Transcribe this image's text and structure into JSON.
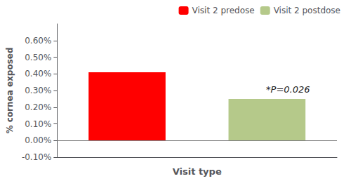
{
  "chart_data": {
    "type": "bar",
    "xlabel": "Visit type",
    "ylabel": "% cornea exposed",
    "categories": [
      "Visit 2 predose",
      "Visit 2 postdose"
    ],
    "values": [
      0.0041,
      0.0025
    ],
    "colors": [
      "#ff0000",
      "#b5c98a"
    ],
    "ylim": [
      -0.001,
      0.007
    ],
    "yticks": [
      {
        "value": -0.001,
        "label": "-0.10%"
      },
      {
        "value": 0.0,
        "label": "0.00%"
      },
      {
        "value": 0.001,
        "label": "0.10%"
      },
      {
        "value": 0.002,
        "label": "0.20%"
      },
      {
        "value": 0.003,
        "label": "0.30%"
      },
      {
        "value": 0.004,
        "label": "0.40%"
      },
      {
        "value": 0.005,
        "label": "0.50%"
      },
      {
        "value": 0.006,
        "label": "0.60%"
      }
    ],
    "annotations": [
      "*P=0.026"
    ],
    "legend": "upper right",
    "tick_labels": "y",
    "grid": false
  }
}
